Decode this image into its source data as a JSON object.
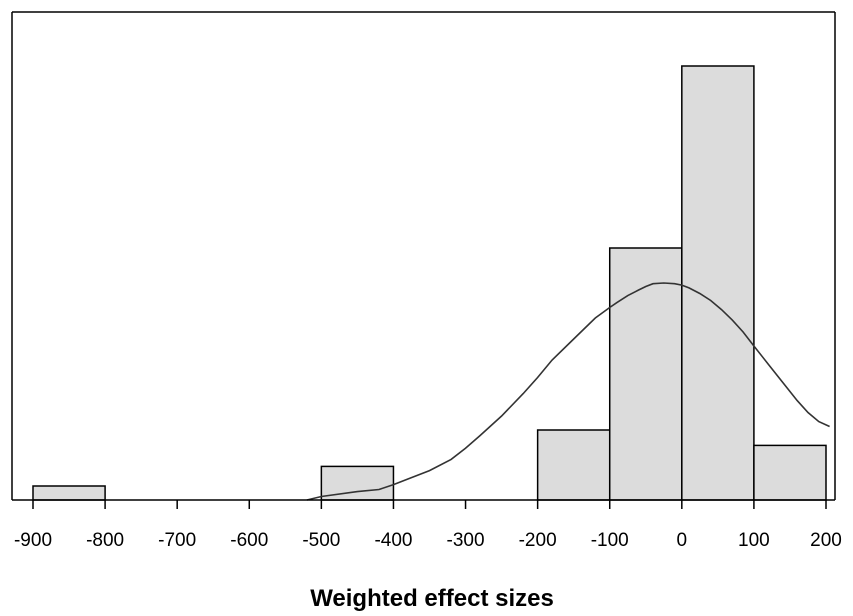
{
  "chart_data": {
    "type": "bar",
    "subtype": "histogram-with-density-curve",
    "title": "",
    "xlabel": "Weighted effect sizes",
    "ylabel": "",
    "xlim": [
      -910,
      210
    ],
    "ylim": [
      0,
      7.1
    ],
    "x_ticks": [
      -900,
      -800,
      -700,
      -600,
      -500,
      -400,
      -300,
      -200,
      -100,
      0,
      100,
      200
    ],
    "x_tick_labels": [
      "-900",
      "-800",
      "-700",
      "-600",
      "-500",
      "-400",
      "-300",
      "-200",
      "-100",
      "0",
      "100",
      "200"
    ],
    "bins": [
      {
        "start": -900,
        "end": -800,
        "count": 0.2
      },
      {
        "start": -500,
        "end": -400,
        "count": 0.48
      },
      {
        "start": -200,
        "end": -100,
        "count": 1.0
      },
      {
        "start": -100,
        "end": 0,
        "count": 3.6
      },
      {
        "start": 0,
        "end": 100,
        "count": 6.2
      },
      {
        "start": 100,
        "end": 200,
        "count": 0.78
      }
    ],
    "curve": {
      "type": "normal-density",
      "x": [
        -520,
        -500,
        -450,
        -420,
        -400,
        -380,
        -350,
        -320,
        -300,
        -280,
        -250,
        -220,
        -200,
        -180,
        -150,
        -130,
        -120,
        -100,
        -90,
        -75,
        -60,
        -50,
        -40,
        -25,
        -10,
        0,
        10,
        25,
        40,
        55,
        70,
        85,
        100,
        120,
        140,
        160,
        175,
        190,
        205
      ],
      "y": [
        0.0,
        0.05,
        0.12,
        0.15,
        0.22,
        0.3,
        0.42,
        0.58,
        0.74,
        0.92,
        1.2,
        1.52,
        1.75,
        2.0,
        2.3,
        2.5,
        2.6,
        2.75,
        2.82,
        2.92,
        3.0,
        3.05,
        3.09,
        3.1,
        3.09,
        3.07,
        3.03,
        2.95,
        2.85,
        2.72,
        2.57,
        2.4,
        2.2,
        1.94,
        1.68,
        1.42,
        1.25,
        1.12,
        1.05
      ]
    },
    "bar_fill": "#dcdcdc",
    "bar_stroke": "#000000",
    "curve_color": "#333333",
    "grid": false,
    "legend": "none"
  }
}
